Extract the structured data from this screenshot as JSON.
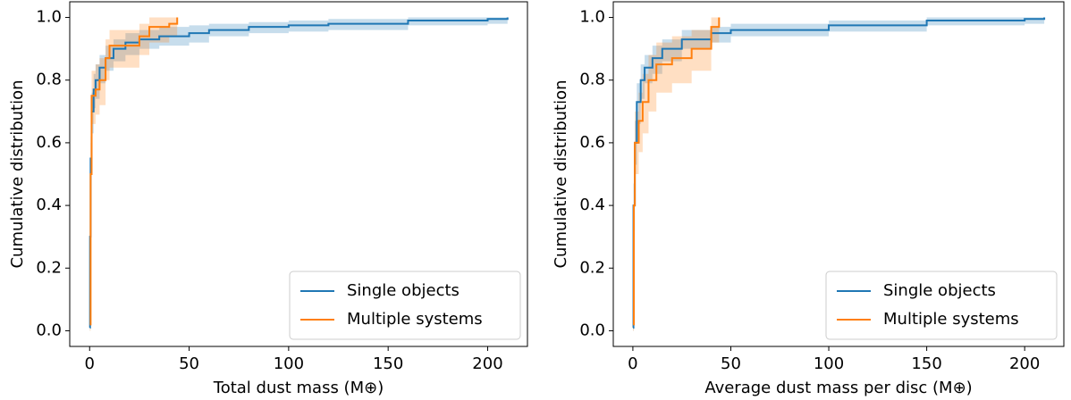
{
  "chart_data": [
    {
      "type": "step",
      "xlabel": "Total dust mass (M⊕)",
      "ylabel": "Cumulative distribution",
      "xlim": [
        -10,
        220
      ],
      "ylim": [
        -0.05,
        1.05
      ],
      "xticks": [
        0,
        50,
        100,
        150,
        200
      ],
      "yticks": [
        {
          "value": 0,
          "label": "0.0"
        },
        0.2,
        0.4,
        0.6,
        0.8,
        {
          "value": 1,
          "label": "1.0"
        }
      ],
      "legend": "lower right",
      "series": [
        {
          "name": "Single objects",
          "color": "#1f77b4",
          "x": [
            0.1,
            0.2,
            0.5,
            1,
            2,
            3,
            5,
            8,
            12,
            18,
            25,
            35,
            50,
            60,
            80,
            100,
            120,
            160,
            200,
            210
          ],
          "values": [
            0.01,
            0.3,
            0.55,
            0.7,
            0.77,
            0.8,
            0.84,
            0.87,
            0.9,
            0.92,
            0.93,
            0.94,
            0.95,
            0.96,
            0.97,
            0.975,
            0.98,
            0.99,
            0.995,
            1.0
          ],
          "lower": [
            0.0,
            0.24,
            0.48,
            0.63,
            0.71,
            0.74,
            0.79,
            0.83,
            0.86,
            0.88,
            0.9,
            0.91,
            0.92,
            0.94,
            0.95,
            0.955,
            0.96,
            0.975,
            0.98,
            0.985
          ],
          "upper": [
            0.04,
            0.36,
            0.62,
            0.76,
            0.82,
            0.85,
            0.88,
            0.91,
            0.93,
            0.95,
            0.96,
            0.97,
            0.975,
            0.98,
            0.985,
            0.99,
            0.995,
            1.0,
            1.0,
            1.0
          ]
        },
        {
          "name": "Multiple systems",
          "color": "#ff7f0e",
          "x": [
            0.1,
            0.5,
            1,
            3,
            5,
            8,
            10,
            25,
            30,
            40,
            44
          ],
          "values": [
            0.02,
            0.5,
            0.75,
            0.77,
            0.8,
            0.87,
            0.91,
            0.94,
            0.97,
            0.98,
            1.0
          ],
          "lower": [
            0.0,
            0.4,
            0.66,
            0.69,
            0.72,
            0.8,
            0.84,
            0.88,
            0.92,
            0.94,
            0.97
          ],
          "upper": [
            0.1,
            0.6,
            0.83,
            0.85,
            0.87,
            0.93,
            0.96,
            0.98,
            1.0,
            1.0,
            1.0
          ]
        }
      ]
    },
    {
      "type": "step",
      "xlabel": "Average dust mass per disc (M⊕)",
      "ylabel": "Cumulative distribution",
      "xlim": [
        -10,
        220
      ],
      "ylim": [
        -0.05,
        1.05
      ],
      "xticks": [
        0,
        50,
        100,
        150,
        200
      ],
      "yticks": [
        {
          "value": 0,
          "label": "0.0"
        },
        0.2,
        0.4,
        0.6,
        0.8,
        {
          "value": 1,
          "label": "1.0"
        }
      ],
      "legend": "lower right",
      "series": [
        {
          "name": "Single objects",
          "color": "#1f77b4",
          "x": [
            0.1,
            0.3,
            1,
            2,
            4,
            6,
            10,
            15,
            25,
            40,
            50,
            100,
            150,
            200,
            210
          ],
          "values": [
            0.01,
            0.4,
            0.6,
            0.73,
            0.8,
            0.84,
            0.87,
            0.9,
            0.93,
            0.95,
            0.96,
            0.975,
            0.99,
            0.995,
            1.0
          ],
          "lower": [
            0.0,
            0.32,
            0.53,
            0.66,
            0.74,
            0.79,
            0.82,
            0.86,
            0.9,
            0.92,
            0.94,
            0.955,
            0.975,
            0.98,
            0.985
          ],
          "upper": [
            0.04,
            0.47,
            0.67,
            0.79,
            0.85,
            0.88,
            0.91,
            0.93,
            0.96,
            0.97,
            0.98,
            0.99,
            1.0,
            1.0,
            1.0
          ]
        },
        {
          "name": "Multiple systems",
          "color": "#ff7f0e",
          "x": [
            0.1,
            0.5,
            1,
            3,
            5,
            8,
            12,
            20,
            30,
            40,
            44
          ],
          "values": [
            0.02,
            0.4,
            0.6,
            0.67,
            0.73,
            0.8,
            0.85,
            0.87,
            0.9,
            0.97,
            1.0
          ],
          "lower": [
            0.0,
            0.3,
            0.5,
            0.57,
            0.63,
            0.7,
            0.76,
            0.79,
            0.83,
            0.92,
            0.97
          ],
          "upper": [
            0.1,
            0.5,
            0.7,
            0.76,
            0.82,
            0.88,
            0.92,
            0.94,
            0.96,
            1.0,
            1.0
          ]
        }
      ]
    }
  ]
}
